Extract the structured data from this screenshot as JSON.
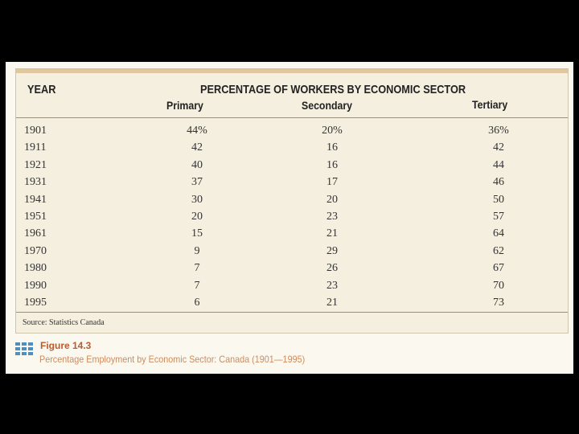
{
  "table": {
    "header": {
      "year": "YEAR",
      "title": "PERCENTAGE OF WORKERS BY ECONOMIC SECTOR",
      "columns": [
        "Primary",
        "Secondary",
        "Tertiary"
      ]
    },
    "rows": [
      {
        "year": "1901",
        "primary": "44%",
        "secondary": "20%",
        "tertiary": "36%"
      },
      {
        "year": "1911",
        "primary": "42",
        "secondary": "16",
        "tertiary": "42"
      },
      {
        "year": "1921",
        "primary": "40",
        "secondary": "16",
        "tertiary": "44"
      },
      {
        "year": "1931",
        "primary": "37",
        "secondary": "17",
        "tertiary": "46"
      },
      {
        "year": "1941",
        "primary": "30",
        "secondary": "20",
        "tertiary": "50"
      },
      {
        "year": "1951",
        "primary": "20",
        "secondary": "23",
        "tertiary": "57"
      },
      {
        "year": "1961",
        "primary": "15",
        "secondary": "21",
        "tertiary": "64"
      },
      {
        "year": "1970",
        "primary": "9",
        "secondary": "29",
        "tertiary": "62"
      },
      {
        "year": "1980",
        "primary": "7",
        "secondary": "26",
        "tertiary": "67"
      },
      {
        "year": "1990",
        "primary": "7",
        "secondary": "23",
        "tertiary": "70"
      },
      {
        "year": "1995",
        "primary": "6",
        "secondary": "21",
        "tertiary": "73"
      }
    ],
    "source": "Source: Statistics Canada"
  },
  "figure": {
    "label": "Figure 14.3",
    "caption": "Percentage Employment by Economic Sector: Canada (1901—1995)",
    "icon": "figure-grid-icon",
    "icon_color": "#4f8fc0"
  },
  "colors": {
    "background": "#000000",
    "paper": "#fbf8f0",
    "panel": "#f4efdf",
    "label_accent": "#c05a2a"
  }
}
